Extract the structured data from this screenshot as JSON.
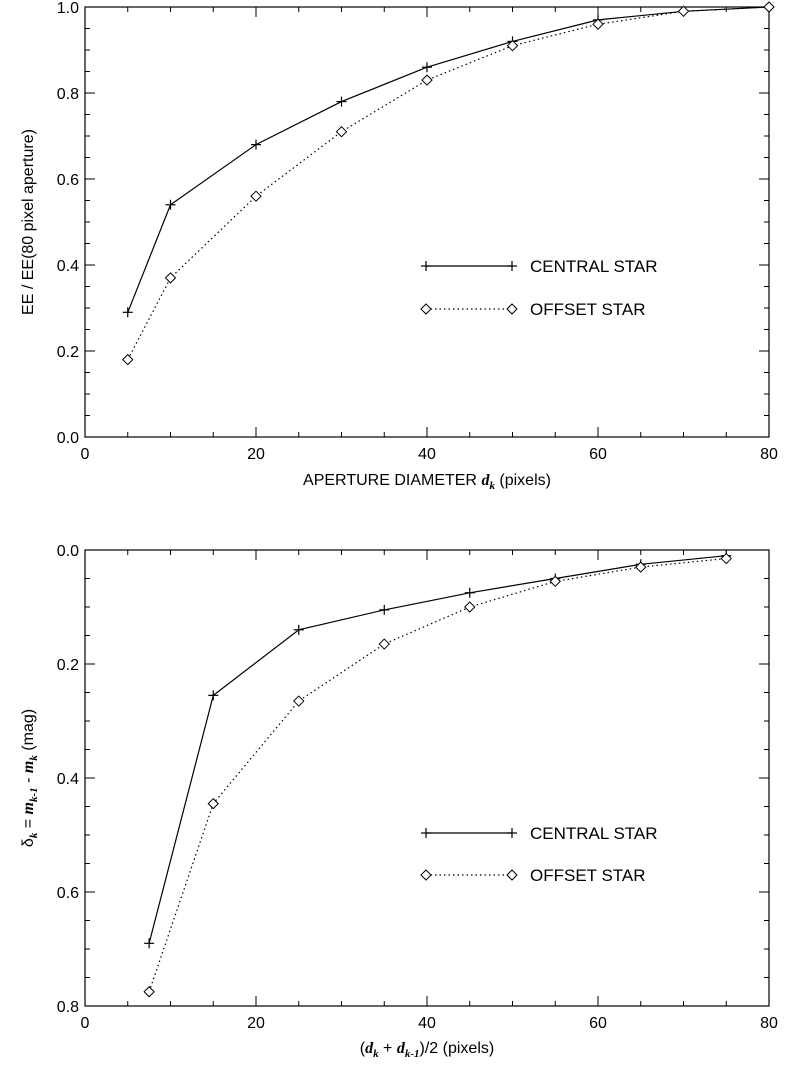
{
  "chart_data": [
    {
      "type": "line",
      "xlim": [
        0,
        80
      ],
      "ylim": [
        0.0,
        1.0
      ],
      "y_inverted": false,
      "xticks": [
        "0",
        "20",
        "40",
        "60",
        "80"
      ],
      "yticks": [
        "0.0",
        "0.2",
        "0.4",
        "0.6",
        "0.8",
        "1.0"
      ],
      "xticks_values": [
        0,
        20,
        40,
        60,
        80
      ],
      "yticks_values": [
        0.0,
        0.2,
        0.4,
        0.6,
        0.8,
        1.0
      ],
      "xlabel_pre": "APERTURE DIAMETER ",
      "xlabel_var": "d",
      "xlabel_sub": "k",
      "xlabel_post": " (pixels)",
      "ylabel": "EE / EE(80 pixel aperture)",
      "legend_position": "center-right",
      "series": [
        {
          "name": "CENTRAL STAR",
          "marker": "plus",
          "linestyle": "solid",
          "x": [
            5,
            10,
            20,
            30,
            40,
            50,
            60,
            70,
            80
          ],
          "y": [
            0.29,
            0.54,
            0.68,
            0.78,
            0.86,
            0.92,
            0.97,
            0.99,
            1.0
          ]
        },
        {
          "name": "OFFSET STAR",
          "marker": "diamond",
          "linestyle": "dotted",
          "x": [
            5,
            10,
            20,
            30,
            40,
            50,
            60,
            70,
            80
          ],
          "y": [
            0.18,
            0.37,
            0.56,
            0.71,
            0.83,
            0.91,
            0.96,
            0.99,
            1.0
          ]
        }
      ]
    },
    {
      "type": "line",
      "xlim": [
        0,
        80
      ],
      "ylim": [
        0.0,
        0.8
      ],
      "y_inverted": true,
      "xticks": [
        "0",
        "20",
        "40",
        "60",
        "80"
      ],
      "yticks": [
        "0.0",
        "0.2",
        "0.4",
        "0.6",
        "0.8"
      ],
      "xticks_values": [
        0,
        20,
        40,
        60,
        80
      ],
      "yticks_values": [
        0.0,
        0.2,
        0.4,
        0.6,
        0.8
      ],
      "xlabel_parts": [
        "(",
        "d",
        "k",
        " + ",
        "d",
        "k-1",
        ")/2 (pixels)"
      ],
      "ylabel_parts": [
        "δ",
        "k",
        " = ",
        "m",
        "k-1",
        " - ",
        "m",
        "k",
        " (mag)"
      ],
      "legend_position": "center-right",
      "series": [
        {
          "name": "CENTRAL STAR",
          "marker": "plus",
          "linestyle": "solid",
          "x": [
            7.5,
            15,
            25,
            35,
            45,
            55,
            65,
            75
          ],
          "y": [
            0.69,
            0.255,
            0.14,
            0.105,
            0.075,
            0.05,
            0.025,
            0.01
          ]
        },
        {
          "name": "OFFSET STAR",
          "marker": "diamond",
          "linestyle": "dotted",
          "x": [
            7.5,
            15,
            25,
            35,
            45,
            55,
            65,
            75
          ],
          "y": [
            0.775,
            0.445,
            0.265,
            0.165,
            0.1,
            0.055,
            0.03,
            0.015
          ]
        }
      ]
    }
  ]
}
